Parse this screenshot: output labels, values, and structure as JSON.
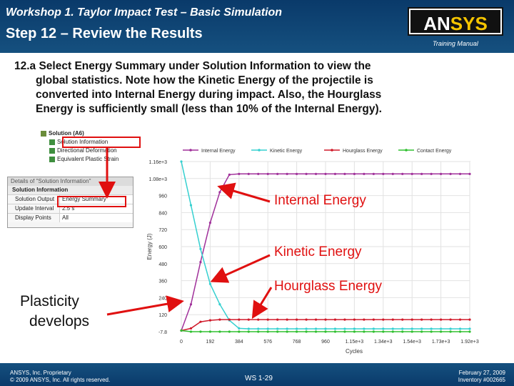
{
  "header": {
    "workshop_title": "Workshop 1. Taylor Impact Test – Basic Simulation",
    "step_title": "Step 12 – Review the Results",
    "logo_an": "AN",
    "logo_sys": "SYS",
    "manual_label": "Training Manual"
  },
  "instruction": {
    "line1": "12.a  Select Energy Summary under Solution Information to view the",
    "line2": "global statistics.  Note how the Kinetic Energy of the projectile is",
    "line3": "converted into Internal Energy during impact.  Also, the Hourglass",
    "line4": "Energy is sufficiently small (less than 10% of the Internal Energy)."
  },
  "tree": {
    "solution": "Solution (A6)",
    "items": [
      "Solution Information",
      "Directional Deformation",
      "Equivalent Plastic Strain"
    ]
  },
  "details": {
    "title": "Details of \"Solution Information\"",
    "section": "Solution Information",
    "rows": [
      {
        "key": "Solution Output",
        "value": "Energy Summary"
      },
      {
        "key": "Update Interval",
        "value": "2.5 s"
      },
      {
        "key": "Display Points",
        "value": "All"
      }
    ]
  },
  "chart_data": {
    "type": "line",
    "ylabel": "Energy (J)",
    "xlabel": "Cycles",
    "x_tick_labels": [
      "0",
      "192",
      "384",
      "576",
      "768",
      "960",
      "1.15e+3",
      "1.34e+3",
      "1.54e+3",
      "1.73e+3",
      "1.92e+3"
    ],
    "y_tick_labels": [
      "-7.8",
      "120",
      "240",
      "360",
      "480",
      "600",
      "720",
      "840",
      "960",
      "1.08e+3",
      "1.16e+3"
    ],
    "ylim": [
      -7.8,
      1160
    ],
    "xlim": [
      0,
      1920
    ],
    "legend_position": "top",
    "series": [
      {
        "name": "Internal Energy",
        "color": "#a0309a",
        "x": [
          0,
          64,
          128,
          192,
          256,
          320,
          384,
          448,
          512,
          576,
          640,
          704,
          768,
          832,
          896,
          960,
          1024,
          1088,
          1152,
          1216,
          1280,
          1344,
          1408,
          1472,
          1536,
          1600,
          1664,
          1728,
          1792,
          1856,
          1920
        ],
        "values": [
          0,
          180,
          470,
          740,
          950,
          1070,
          1075,
          1075,
          1075,
          1075,
          1075,
          1075,
          1075,
          1075,
          1075,
          1075,
          1075,
          1075,
          1075,
          1075,
          1075,
          1075,
          1075,
          1075,
          1075,
          1075,
          1075,
          1075,
          1075,
          1075,
          1075
        ]
      },
      {
        "name": "Kinetic Energy",
        "color": "#35d0d0",
        "x": [
          0,
          64,
          128,
          192,
          256,
          320,
          384,
          448,
          512,
          576,
          640,
          704,
          768,
          832,
          896,
          960,
          1024,
          1088,
          1152,
          1216,
          1280,
          1344,
          1408,
          1472,
          1536,
          1600,
          1664,
          1728,
          1792,
          1856,
          1920
        ],
        "values": [
          1160,
          860,
          560,
          320,
          180,
          70,
          15,
          12,
          12,
          12,
          12,
          12,
          12,
          12,
          12,
          12,
          12,
          12,
          12,
          12,
          12,
          12,
          12,
          12,
          12,
          12,
          12,
          12,
          12,
          12,
          12
        ]
      },
      {
        "name": "Hourglass Energy",
        "color": "#d01a2a",
        "x": [
          0,
          64,
          128,
          192,
          256,
          320,
          384,
          448,
          512,
          576,
          640,
          704,
          768,
          832,
          896,
          960,
          1024,
          1088,
          1152,
          1216,
          1280,
          1344,
          1408,
          1472,
          1536,
          1600,
          1664,
          1728,
          1792,
          1856,
          1920
        ],
        "values": [
          0,
          15,
          60,
          70,
          75,
          75,
          75,
          75,
          75,
          75,
          75,
          75,
          75,
          75,
          75,
          75,
          75,
          75,
          75,
          75,
          75,
          75,
          75,
          75,
          75,
          75,
          75,
          75,
          75,
          75,
          75
        ]
      },
      {
        "name": "Contact Energy",
        "color": "#30c030",
        "x": [
          0,
          64,
          128,
          192,
          256,
          320,
          384,
          448,
          512,
          576,
          640,
          704,
          768,
          832,
          896,
          960,
          1024,
          1088,
          1152,
          1216,
          1280,
          1344,
          1408,
          1472,
          1536,
          1600,
          1664,
          1728,
          1792,
          1856,
          1920
        ],
        "values": [
          0,
          -7.8,
          -7.8,
          -7.8,
          -7.8,
          -7.8,
          -7.8,
          -7.8,
          -7.8,
          -7.8,
          -7.8,
          -7.8,
          -7.8,
          -7.8,
          -7.8,
          -7.8,
          -7.8,
          -7.8,
          -7.8,
          -7.8,
          -7.8,
          -7.8,
          -7.8,
          -7.8,
          -7.8,
          -7.8,
          -7.8,
          -7.8,
          -7.8,
          -7.8,
          -7.8
        ]
      }
    ]
  },
  "callouts": {
    "internal": "Internal Energy",
    "kinetic": "Kinetic Energy",
    "hourglass": "Hourglass Energy",
    "plasticity_1": "Plasticity",
    "plasticity_2": "develops"
  },
  "footer": {
    "left1": "ANSYS, Inc. Proprietary",
    "left2": "© 2009 ANSYS, Inc.  All rights reserved.",
    "mid": "WS 1-29",
    "right1": "February 27, 2009",
    "right2": "Inventory #002665"
  },
  "colors": {
    "header_bg": "#0a3a6a",
    "callout_red": "#e01010",
    "logo_yellow": "#f4c400"
  }
}
